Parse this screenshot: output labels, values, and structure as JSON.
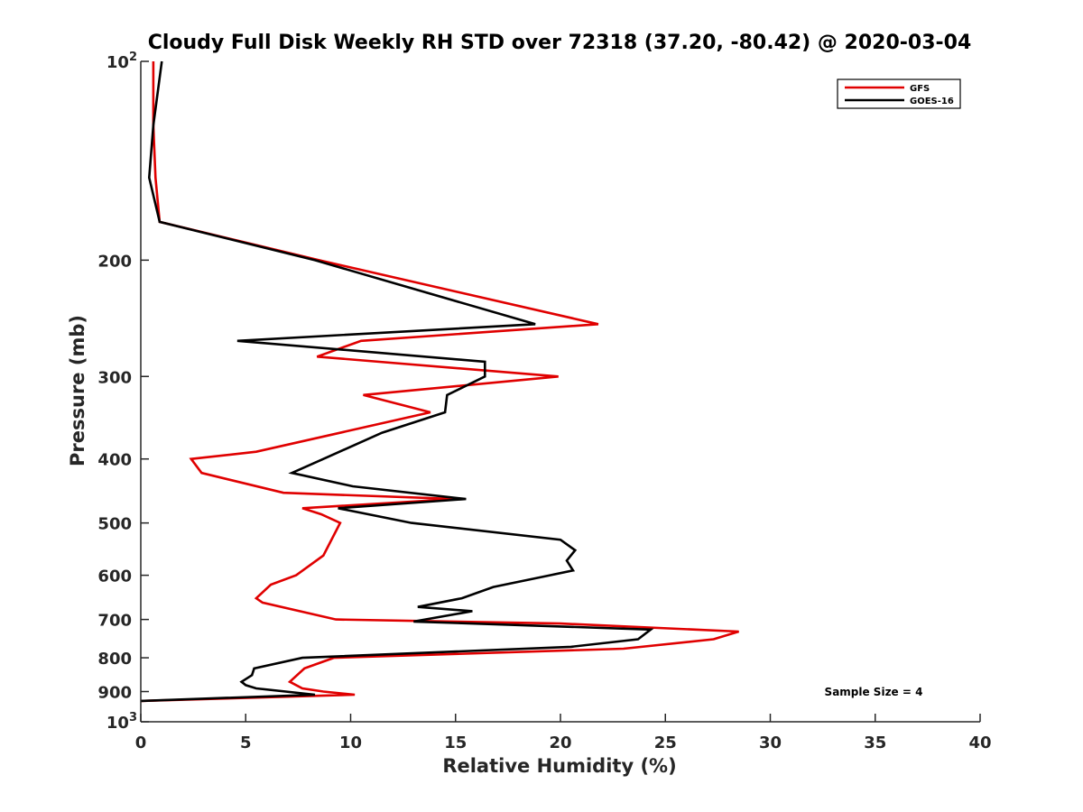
{
  "chart_data": {
    "type": "line",
    "title": "Cloudy Full Disk Weekly RH STD over 72318 (37.20, -80.42) @ 2020-03-04",
    "xlabel": "Relative Humidity (%)",
    "ylabel": "Pressure (mb)",
    "xlim": [
      0,
      40
    ],
    "ylim": [
      100,
      1000
    ],
    "yscale": "log",
    "yreversed": true,
    "xticks": [
      0,
      5,
      10,
      15,
      20,
      25,
      30,
      35,
      40
    ],
    "xtick_labels": [
      "0",
      "5",
      "10",
      "15",
      "20",
      "25",
      "30",
      "35",
      "40"
    ],
    "yticks": [
      {
        "value": 100,
        "label": "10",
        "sup": "2"
      },
      {
        "value": 200,
        "label": "200"
      },
      {
        "value": 300,
        "label": "300"
      },
      {
        "value": 400,
        "label": "400"
      },
      {
        "value": 500,
        "label": "500"
      },
      {
        "value": 600,
        "label": "600"
      },
      {
        "value": 700,
        "label": "700"
      },
      {
        "value": 800,
        "label": "800"
      },
      {
        "value": 900,
        "label": "900"
      },
      {
        "value": 1000,
        "label": "10",
        "sup": "3"
      }
    ],
    "legend_position": "top-right",
    "annotation": "Sample Size = 4",
    "series": [
      {
        "name": "GFS",
        "color": "#e00000",
        "points": [
          [
            0.6,
            100
          ],
          [
            0.6,
            125
          ],
          [
            0.7,
            150
          ],
          [
            0.9,
            175
          ],
          [
            8.5,
            200
          ],
          [
            21.8,
            250
          ],
          [
            10.5,
            265
          ],
          [
            8.4,
            280
          ],
          [
            19.9,
            300
          ],
          [
            10.6,
            320
          ],
          [
            13.8,
            340
          ],
          [
            5.5,
            390
          ],
          [
            2.4,
            400
          ],
          [
            2.9,
            420
          ],
          [
            6.8,
            450
          ],
          [
            15.0,
            460
          ],
          [
            7.7,
            475
          ],
          [
            8.6,
            485
          ],
          [
            9.5,
            500
          ],
          [
            8.7,
            560
          ],
          [
            7.4,
            600
          ],
          [
            6.2,
            620
          ],
          [
            5.5,
            650
          ],
          [
            5.8,
            660
          ],
          [
            9.3,
            700
          ],
          [
            20.0,
            710
          ],
          [
            28.5,
            730
          ],
          [
            27.3,
            750
          ],
          [
            23.0,
            775
          ],
          [
            9.2,
            800
          ],
          [
            7.8,
            830
          ],
          [
            7.1,
            870
          ],
          [
            7.7,
            890
          ],
          [
            8.7,
            900
          ],
          [
            10.2,
            910
          ],
          [
            0.0,
            930
          ]
        ]
      },
      {
        "name": "GOES-16",
        "color": "#000000",
        "points": [
          [
            1.0,
            100
          ],
          [
            0.6,
            125
          ],
          [
            0.4,
            150
          ],
          [
            0.9,
            175
          ],
          [
            8.3,
            200
          ],
          [
            18.8,
            250
          ],
          [
            4.6,
            265
          ],
          [
            16.4,
            285
          ],
          [
            16.4,
            300
          ],
          [
            14.6,
            320
          ],
          [
            14.5,
            340
          ],
          [
            11.5,
            365
          ],
          [
            8.7,
            400
          ],
          [
            7.2,
            420
          ],
          [
            10.1,
            440
          ],
          [
            15.5,
            460
          ],
          [
            9.4,
            475
          ],
          [
            12.9,
            500
          ],
          [
            20.0,
            530
          ],
          [
            20.7,
            550
          ],
          [
            20.3,
            570
          ],
          [
            20.6,
            590
          ],
          [
            19.5,
            600
          ],
          [
            16.8,
            625
          ],
          [
            15.3,
            650
          ],
          [
            13.2,
            670
          ],
          [
            15.8,
            680
          ],
          [
            13.0,
            705
          ],
          [
            24.3,
            725
          ],
          [
            23.7,
            750
          ],
          [
            20.5,
            770
          ],
          [
            7.7,
            800
          ],
          [
            5.4,
            830
          ],
          [
            5.3,
            850
          ],
          [
            4.8,
            870
          ],
          [
            5.0,
            880
          ],
          [
            5.5,
            890
          ],
          [
            8.3,
            910
          ],
          [
            0.0,
            930
          ]
        ]
      }
    ]
  }
}
